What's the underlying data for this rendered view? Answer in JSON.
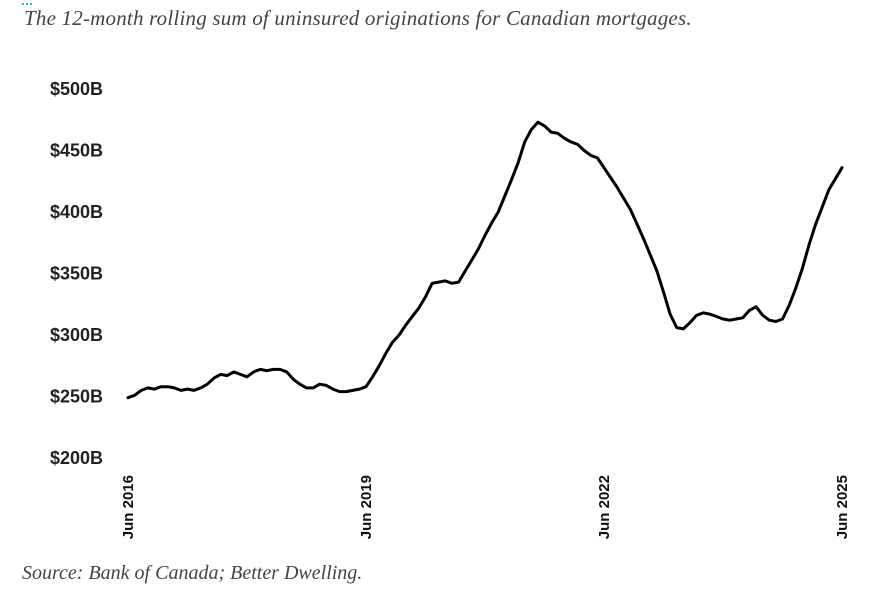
{
  "header": {
    "subtitle": "The 12-month rolling sum of uninsured originations for Canadian mortgages."
  },
  "footer": {
    "source": "Source: Bank of Canada; Better Dwelling."
  },
  "colors": {
    "line": "#000000",
    "accent": "#2bb3b1",
    "text": "#444444"
  },
  "chart_data": {
    "type": "line",
    "title": "",
    "xlabel": "",
    "ylabel": "",
    "ylim": [
      200,
      500
    ],
    "yticks": [
      200,
      250,
      300,
      350,
      400,
      450,
      500
    ],
    "ytick_labels": [
      "$200B",
      "$250B",
      "$300B",
      "$350B",
      "$400B",
      "$450B",
      "$500B"
    ],
    "xticks": [
      "2016-06",
      "2019-06",
      "2022-06",
      "2025-06"
    ],
    "xtick_labels": [
      "Jun 2016",
      "Jun 2019",
      "Jun 2022",
      "Jun 2025"
    ],
    "grid": false,
    "legend": "none",
    "series": [
      {
        "x": [
          "2016-06",
          "2016-07",
          "2016-08",
          "2016-09",
          "2016-10",
          "2016-11",
          "2016-12",
          "2017-01",
          "2017-02",
          "2017-03",
          "2017-04",
          "2017-05",
          "2017-06",
          "2017-07",
          "2017-08",
          "2017-09",
          "2017-10",
          "2017-11",
          "2017-12",
          "2018-01",
          "2018-02",
          "2018-03",
          "2018-04",
          "2018-05",
          "2018-06",
          "2018-07",
          "2018-08",
          "2018-09",
          "2018-10",
          "2018-11",
          "2018-12",
          "2019-01",
          "2019-02",
          "2019-03",
          "2019-04",
          "2019-05",
          "2019-06",
          "2019-07",
          "2019-08",
          "2019-09",
          "2019-10",
          "2019-11",
          "2019-12",
          "2020-01",
          "2020-02",
          "2020-03",
          "2020-04",
          "2020-05",
          "2020-06",
          "2020-07",
          "2020-08",
          "2020-09",
          "2020-10",
          "2020-11",
          "2020-12",
          "2021-01",
          "2021-02",
          "2021-03",
          "2021-04",
          "2021-05",
          "2021-06",
          "2021-07",
          "2021-08",
          "2021-09",
          "2021-10",
          "2021-11",
          "2021-12",
          "2022-01",
          "2022-02",
          "2022-03",
          "2022-04",
          "2022-05",
          "2022-06",
          "2022-07",
          "2022-08",
          "2022-09",
          "2022-10",
          "2022-11",
          "2022-12",
          "2023-01",
          "2023-02",
          "2023-03",
          "2023-04",
          "2023-05",
          "2023-06",
          "2023-07",
          "2023-08",
          "2023-09",
          "2023-10",
          "2023-11",
          "2023-12",
          "2024-01",
          "2024-02",
          "2024-03",
          "2024-04",
          "2024-05",
          "2024-06",
          "2024-07",
          "2024-08",
          "2024-09",
          "2024-10",
          "2024-11",
          "2024-12",
          "2025-01",
          "2025-02",
          "2025-03",
          "2025-04",
          "2025-05",
          "2025-06"
        ],
        "values": [
          249,
          251,
          255,
          257,
          256,
          258,
          258,
          257,
          255,
          256,
          255,
          257,
          260,
          265,
          268,
          267,
          270,
          268,
          266,
          270,
          272,
          271,
          272,
          272,
          270,
          264,
          260,
          257,
          257,
          260,
          259,
          256,
          254,
          254,
          255,
          256,
          258,
          266,
          275,
          285,
          294,
          300,
          308,
          315,
          322,
          331,
          342,
          343,
          344,
          342,
          343,
          352,
          361,
          370,
          381,
          391,
          400,
          413,
          426,
          440,
          457,
          467,
          473,
          470,
          465,
          464,
          460,
          457,
          455,
          450,
          446,
          444,
          436,
          428,
          420,
          411,
          402,
          390,
          378,
          365,
          352,
          335,
          317,
          306,
          305,
          310,
          316,
          318,
          317,
          315,
          313,
          312,
          313,
          314,
          320,
          323,
          316,
          312,
          311,
          313,
          324,
          338,
          354,
          373,
          390,
          404,
          418,
          427,
          436
        ]
      }
    ]
  }
}
